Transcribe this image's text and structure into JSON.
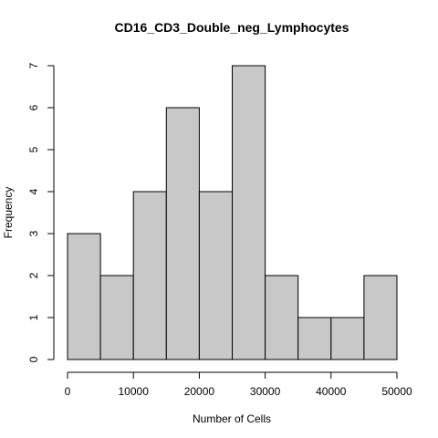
{
  "chart_data": {
    "type": "bar",
    "title": "CD16_CD3_Double_neg_Lymphocytes",
    "xlabel": "Number of Cells",
    "ylabel": "Frequency",
    "bins": [
      {
        "from": 0,
        "to": 5000,
        "count": 3
      },
      {
        "from": 5000,
        "to": 10000,
        "count": 2
      },
      {
        "from": 10000,
        "to": 15000,
        "count": 4
      },
      {
        "from": 15000,
        "to": 20000,
        "count": 6
      },
      {
        "from": 20000,
        "to": 25000,
        "count": 4
      },
      {
        "from": 25000,
        "to": 30000,
        "count": 7
      },
      {
        "from": 30000,
        "to": 35000,
        "count": 2
      },
      {
        "from": 35000,
        "to": 40000,
        "count": 1
      },
      {
        "from": 40000,
        "to": 45000,
        "count": 1
      },
      {
        "from": 45000,
        "to": 50000,
        "count": 2
      }
    ],
    "x_ticks": [
      "0",
      "10000",
      "20000",
      "30000",
      "40000",
      "50000"
    ],
    "y_ticks": [
      "0",
      "1",
      "2",
      "3",
      "4",
      "5",
      "6",
      "7"
    ],
    "xlim": [
      0,
      50000
    ],
    "ylim": [
      0,
      7
    ],
    "grid": false,
    "bar_color": "#c8c8c8",
    "edge_color": "#000000"
  }
}
